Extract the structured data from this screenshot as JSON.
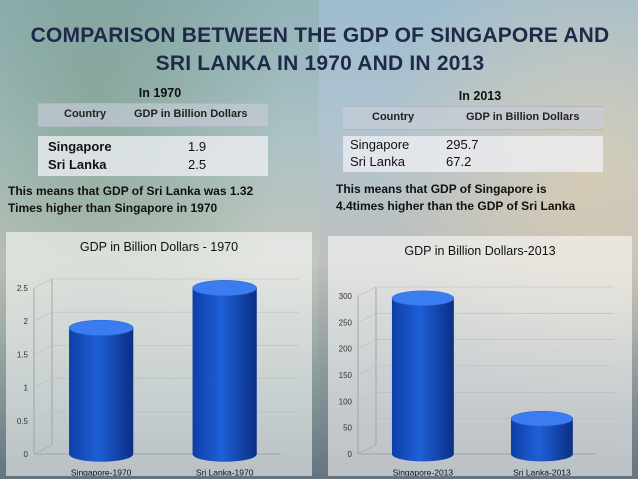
{
  "title_line1": "COMPARISON BETWEEN THE GDP OF SINGAPORE AND",
  "title_line2": "SRI LANKA IN 1970 AND IN 2013",
  "table_1970": {
    "heading": "In 1970",
    "col_country": "Country",
    "col_gdp": "GDP in Billion Dollars",
    "rows": [
      {
        "country": "Singapore",
        "gdp": "1.9"
      },
      {
        "country": "Sri Lanka",
        "gdp": "2.5"
      }
    ],
    "note_line1": "This means that GDP of Sri Lanka was 1.32",
    "note_line2": "Times higher than Singapore in 1970"
  },
  "table_2013": {
    "heading": "In 2013",
    "col_country": "Country",
    "col_gdp": "GDP in Billion Dollars",
    "rows": [
      {
        "country": "Singapore",
        "gdp": "295.7"
      },
      {
        "country": "Sri Lanka",
        "gdp": "67.2"
      }
    ],
    "note_line1": "This means that GDP of Singapore is",
    "note_line2": "4.4times higher than the GDP of Sri Lanka"
  },
  "chart_data": [
    {
      "type": "bar",
      "title": "GDP in Billion Dollars - 1970",
      "categories": [
        "Singapore-1970",
        "Sri Lanka-1970"
      ],
      "values": [
        1.9,
        2.5
      ],
      "ylim": [
        0,
        2.5
      ],
      "yticks": [
        "0",
        "0.5",
        "1",
        "1.5",
        "2",
        "2.5"
      ],
      "grid": true,
      "bar_color": "#1f5fd6"
    },
    {
      "type": "bar",
      "title": "GDP in Billion Dollars-2013",
      "categories": [
        "Singapore-2013",
        "Sri Lanka-2013"
      ],
      "values": [
        295.7,
        67.2
      ],
      "ylim": [
        0,
        300
      ],
      "yticks": [
        "0",
        "50",
        "100",
        "150",
        "200",
        "250",
        "300"
      ],
      "grid": true,
      "bar_color": "#1f5fd6"
    }
  ]
}
